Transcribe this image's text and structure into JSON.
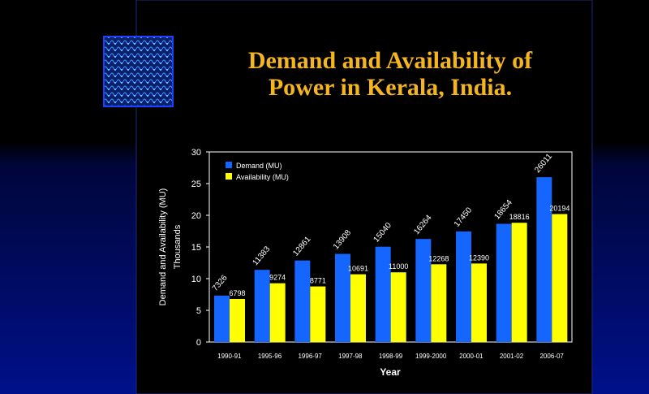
{
  "chart_data": {
    "type": "bar",
    "title": [
      "Demand and Availability of",
      "Power in Kerala, India."
    ],
    "y_label": [
      "Demand and Availability (MU)",
      "Thousands"
    ],
    "x_label": "Year",
    "categories": [
      "1990-91",
      "1995-96",
      "1996-97",
      "1997-98",
      "1998-99",
      "1999-2000",
      "2000-01",
      "2001-02",
      "2006-07"
    ],
    "series": [
      {
        "name": "Demand (MU)",
        "color": "#1565ff",
        "values": [
          7.326,
          11.383,
          12.861,
          13.908,
          15.04,
          16.264,
          17.45,
          18.654,
          26.011
        ],
        "value_labels": [
          "7326",
          "11383",
          "12861",
          "13908",
          "15040",
          "16264",
          "17450",
          "18654",
          "26011"
        ]
      },
      {
        "name": "Availability (MU)",
        "color": "#ffff00",
        "values": [
          6.798,
          9.274,
          8.771,
          10.691,
          11.0,
          12.268,
          12.39,
          18.816,
          20.194
        ],
        "value_labels": [
          "6798",
          "9274",
          "8771",
          "10691",
          "11000",
          "12268",
          "12390",
          "18816",
          "20194"
        ]
      }
    ],
    "ylim": [
      0,
      30
    ],
    "yticks": [
      0,
      5,
      10,
      15,
      20,
      25,
      30
    ],
    "legend": "upper-left"
  }
}
